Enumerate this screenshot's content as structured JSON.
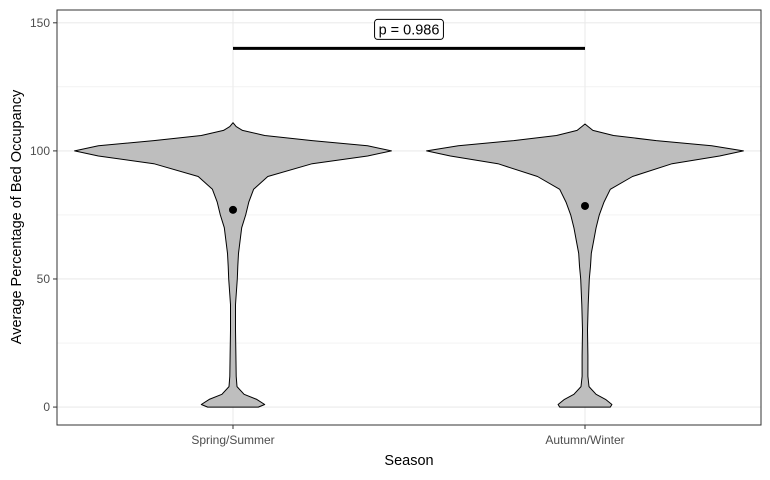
{
  "chart_data": {
    "type": "violin",
    "categories": [
      "Spring/Summer",
      "Autumn/Winter"
    ],
    "xlabel": "Season",
    "ylabel": "Average Percentage of Bed Occupancy",
    "ylim": [
      -7,
      155
    ],
    "yticks": [
      0,
      50,
      100,
      150
    ],
    "grid": true,
    "violin_fill": "#bebebe",
    "violin_stroke": "#000000",
    "grid_color": "#ebebeb",
    "series": [
      {
        "category": "Spring/Summer",
        "mean": 77,
        "profile": [
          [
            0,
            0.16
          ],
          [
            1,
            0.2
          ],
          [
            3,
            0.15
          ],
          [
            5,
            0.07
          ],
          [
            8,
            0.025
          ],
          [
            12,
            0.02
          ],
          [
            20,
            0.018
          ],
          [
            30,
            0.016
          ],
          [
            40,
            0.016
          ],
          [
            50,
            0.027
          ],
          [
            55,
            0.03
          ],
          [
            60,
            0.035
          ],
          [
            65,
            0.045
          ],
          [
            70,
            0.055
          ],
          [
            75,
            0.08
          ],
          [
            80,
            0.1
          ],
          [
            85,
            0.13
          ],
          [
            90,
            0.22
          ],
          [
            95,
            0.5
          ],
          [
            98,
            0.85
          ],
          [
            100,
            1.0
          ],
          [
            102,
            0.85
          ],
          [
            104,
            0.5
          ],
          [
            106,
            0.2
          ],
          [
            108,
            0.06
          ],
          [
            109.5,
            0.02
          ],
          [
            111,
            0.0
          ]
        ]
      },
      {
        "category": "Autumn/Winter",
        "mean": 78.5,
        "profile": [
          [
            0,
            0.16
          ],
          [
            1,
            0.17
          ],
          [
            3,
            0.13
          ],
          [
            5,
            0.07
          ],
          [
            8,
            0.025
          ],
          [
            12,
            0.018
          ],
          [
            20,
            0.018
          ],
          [
            30,
            0.016
          ],
          [
            40,
            0.02
          ],
          [
            50,
            0.027
          ],
          [
            55,
            0.035
          ],
          [
            60,
            0.04
          ],
          [
            65,
            0.055
          ],
          [
            70,
            0.07
          ],
          [
            75,
            0.09
          ],
          [
            80,
            0.12
          ],
          [
            85,
            0.16
          ],
          [
            90,
            0.3
          ],
          [
            95,
            0.55
          ],
          [
            98,
            0.85
          ],
          [
            100,
            1.0
          ],
          [
            102,
            0.8
          ],
          [
            104,
            0.45
          ],
          [
            106,
            0.18
          ],
          [
            108,
            0.05
          ],
          [
            109.5,
            0.02
          ],
          [
            110.5,
            0.0
          ]
        ]
      }
    ],
    "significance": {
      "label": "p = 0.986",
      "y": 140,
      "from": "Spring/Summer",
      "to": "Autumn/Winter"
    }
  }
}
